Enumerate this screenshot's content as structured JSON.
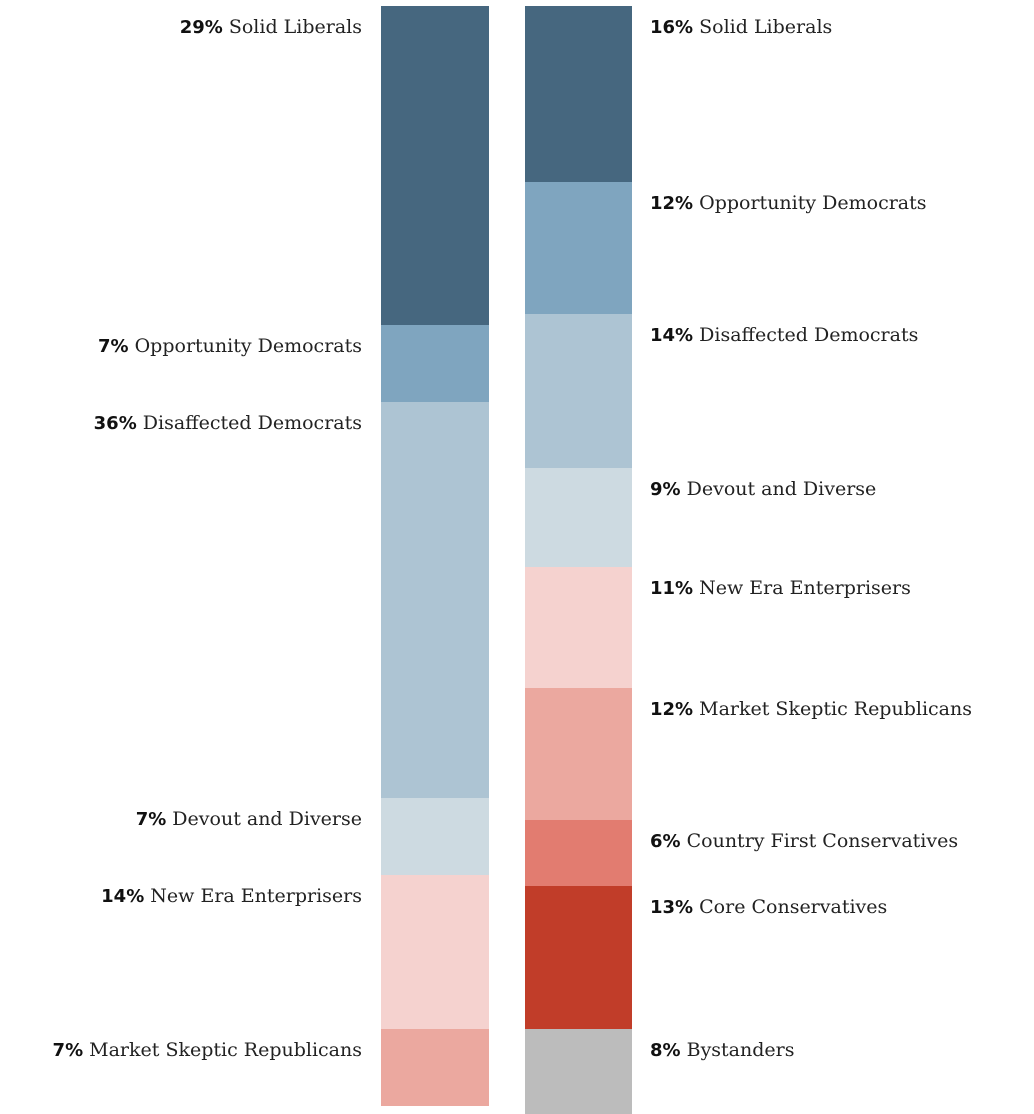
{
  "colors": {
    "Solid Liberals": "#46677f",
    "Opportunity Democrats": "#7fa5bf",
    "Disaffected Democrats": "#adc4d3",
    "Devout and Diverse": "#cddae1",
    "New Era Enterprisers": "#f5d2cf",
    "Market Skeptic Republicans": "#eba89f",
    "Country First Conservatives": "#e27c70",
    "Core Conservatives": "#c13d29",
    "Bystanders": "#bcbcbc"
  },
  "chart_data": [
    {
      "type": "bar",
      "stacked": true,
      "orientation": "vertical",
      "label_side": "left",
      "categories": [
        "Solid Liberals",
        "Opportunity Democrats",
        "Disaffected Democrats",
        "Devout and Diverse",
        "New Era Enterprisers",
        "Market Skeptic Republicans"
      ],
      "values": [
        29,
        7,
        36,
        7,
        14,
        7
      ],
      "pct_labels": [
        "29%",
        "7%",
        "36%",
        "7%",
        "14%",
        "7%"
      ],
      "note": "column continues beyond visible area"
    },
    {
      "type": "bar",
      "stacked": true,
      "orientation": "vertical",
      "label_side": "right",
      "categories": [
        "Solid Liberals",
        "Opportunity Democrats",
        "Disaffected Democrats",
        "Devout and Diverse",
        "New Era Enterprisers",
        "Market Skeptic Republicans",
        "Country First Conservatives",
        "Core Conservatives",
        "Bystanders"
      ],
      "values": [
        16,
        12,
        14,
        9,
        11,
        12,
        6,
        13,
        8
      ],
      "pct_labels": [
        "16%",
        "12%",
        "14%",
        "9%",
        "11%",
        "12%",
        "6%",
        "13%",
        "8%"
      ]
    }
  ]
}
